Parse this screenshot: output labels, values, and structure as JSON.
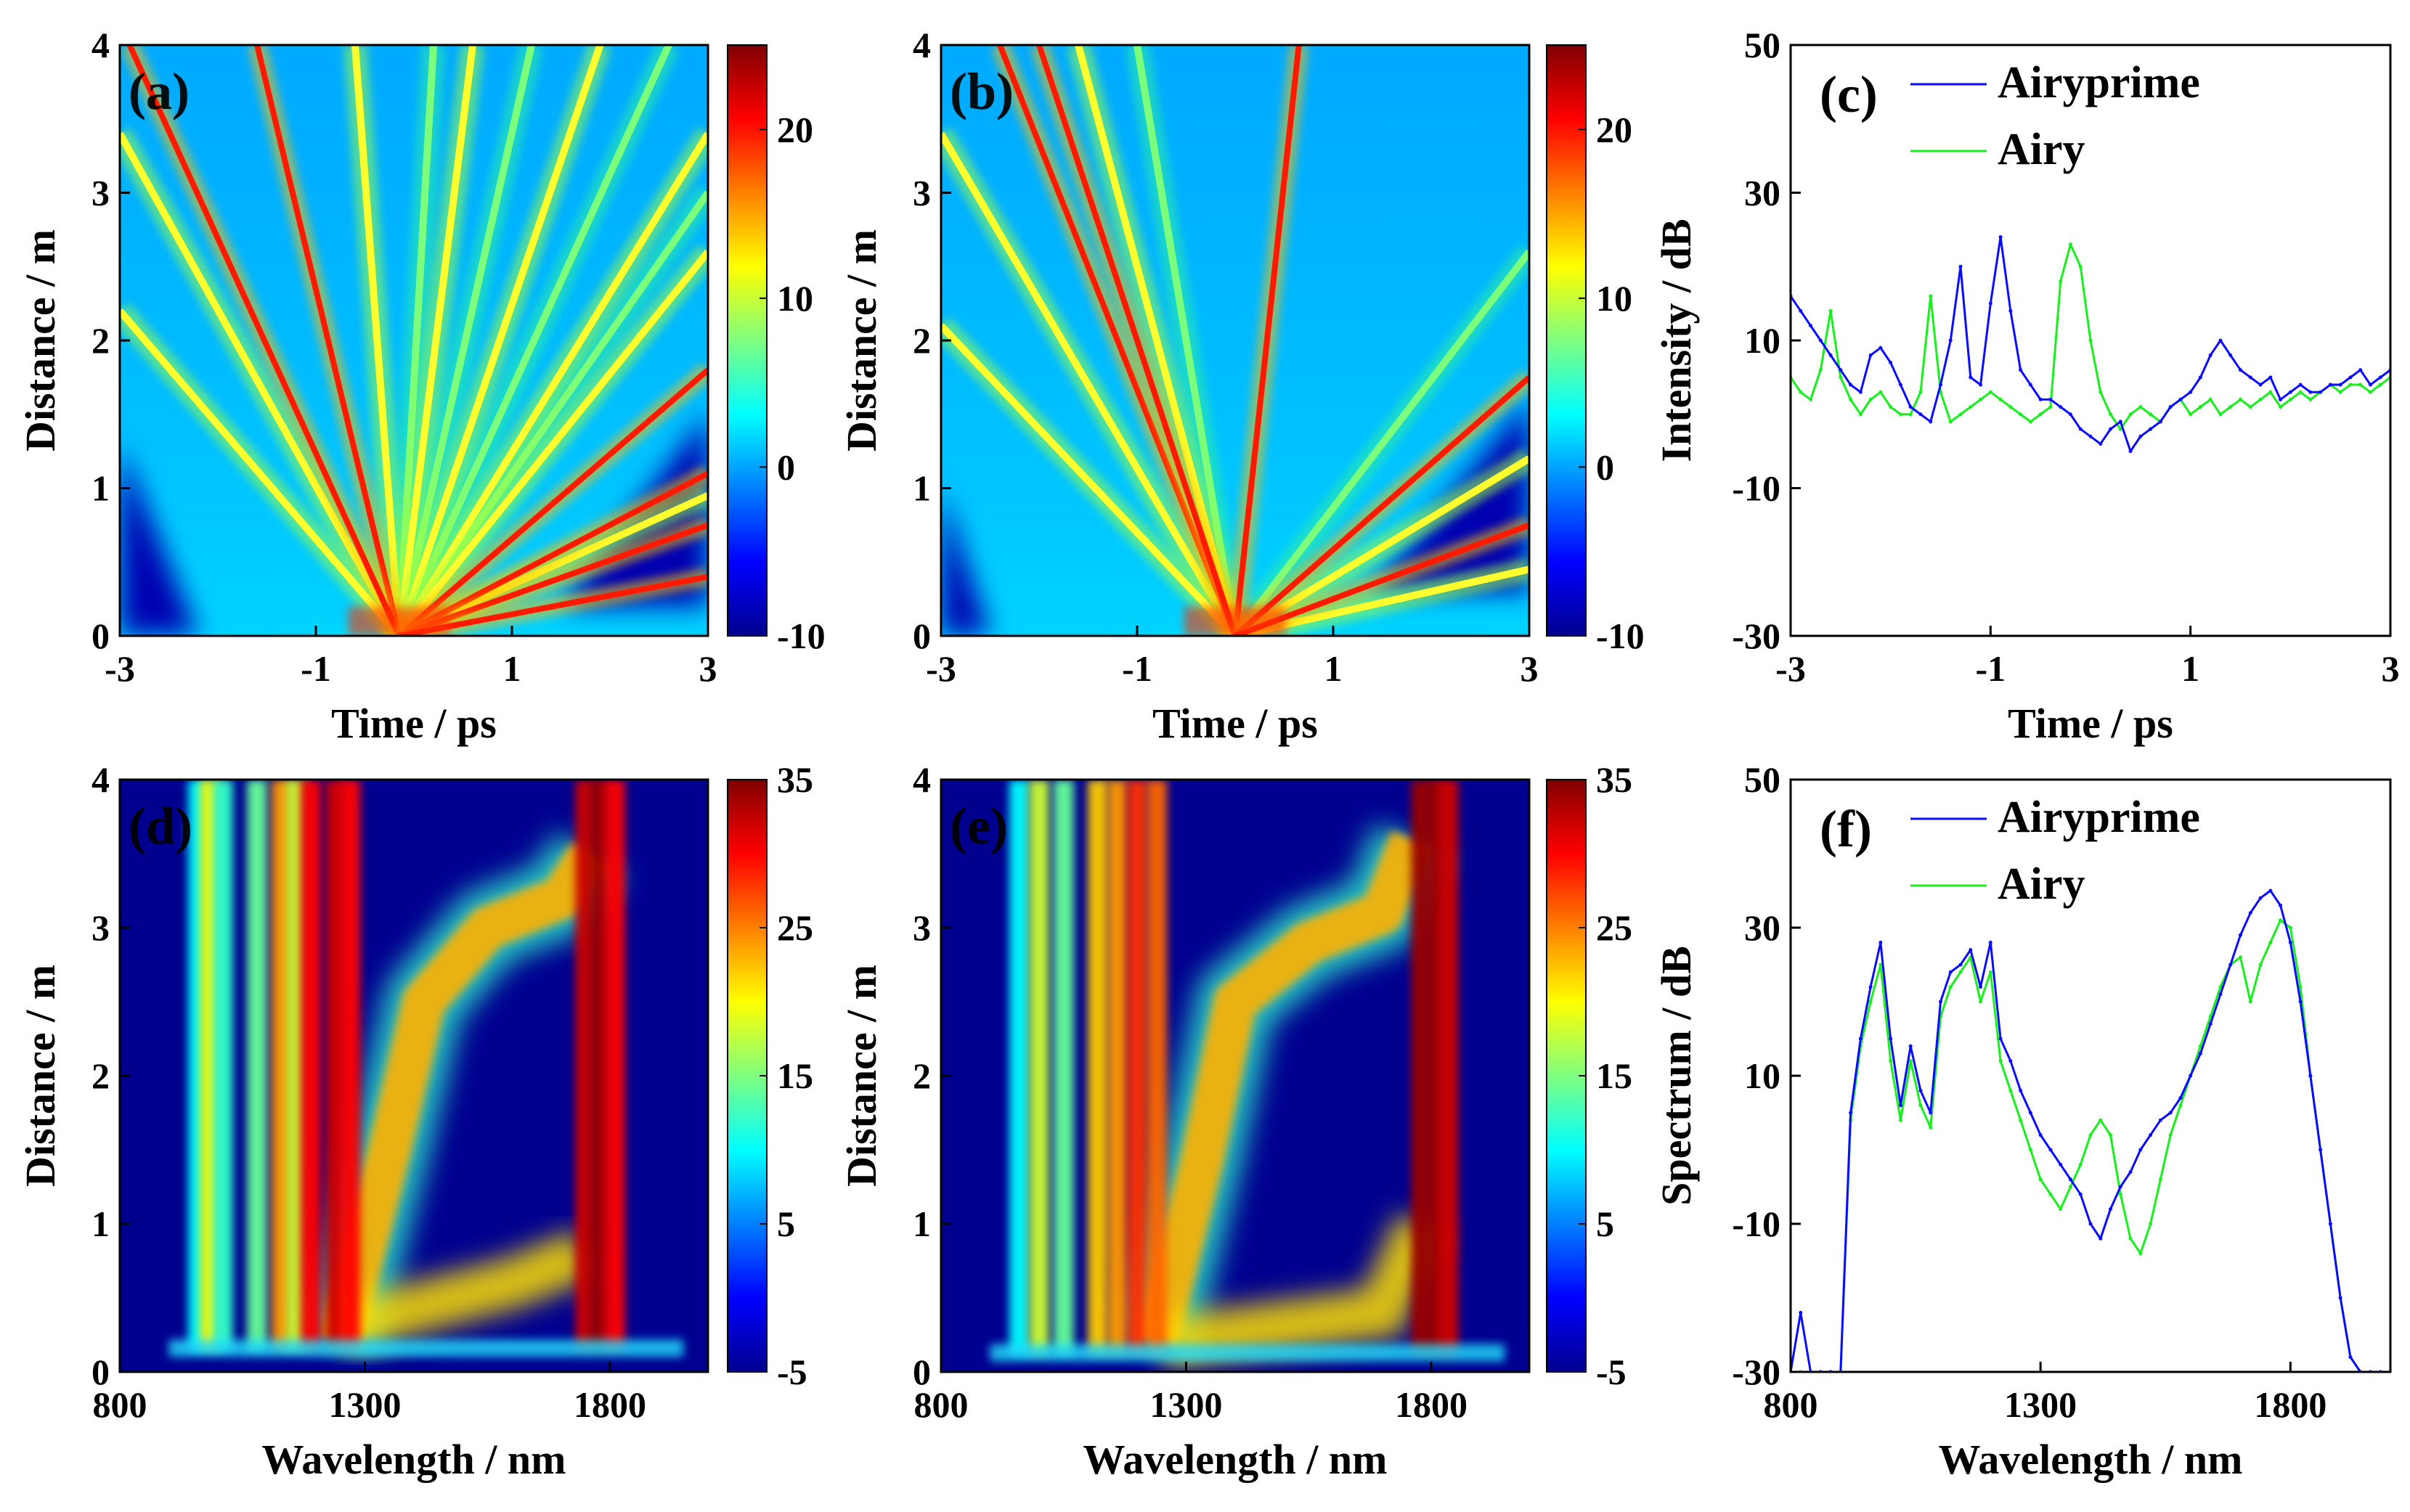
{
  "figure": {
    "panels": [
      "(a)",
      "(b)",
      "(c)",
      "(d)",
      "(e)",
      "(f)"
    ]
  },
  "colors": {
    "airyprime": "#0a0aff",
    "airy": "#17f01d",
    "map_low": "#00008f",
    "map_high": "#800000"
  },
  "chart_data": [
    {
      "id": "a",
      "type": "heatmap",
      "panel_label": "(a)",
      "xlabel": "Time / ps",
      "ylabel": "Distance / m",
      "xlim": [
        -3,
        3
      ],
      "ylim": [
        0,
        4
      ],
      "xticks": [
        -3,
        -1,
        1,
        3
      ],
      "xtick_labels": [
        "-3",
        "-1",
        "1",
        "3"
      ],
      "yticks": [
        0,
        1,
        2,
        3,
        4
      ],
      "ytick_labels": [
        "0",
        "1",
        "2",
        "3",
        "4"
      ],
      "clim": [
        -10,
        25
      ],
      "cticks": [
        -10,
        0,
        10,
        20
      ],
      "ctick_labels": [
        "-10",
        "0",
        "10",
        "20"
      ],
      "colormap": "jet",
      "features": {
        "fan_origin": [
          -0.15,
          0
        ],
        "strong_lines": [
          [
            -1.6,
            4
          ],
          [
            -2.9,
            4
          ],
          [
            3,
            1.8
          ],
          [
            3,
            1.1
          ],
          [
            3,
            0.75
          ],
          [
            3,
            0.4
          ]
        ],
        "medium_lines": [
          [
            -3,
            3.4
          ],
          [
            -3,
            2.2
          ],
          [
            -0.6,
            4
          ],
          [
            0.6,
            4
          ],
          [
            1.9,
            4
          ],
          [
            3,
            3.4
          ],
          [
            3,
            2.6
          ],
          [
            3,
            0.95
          ]
        ],
        "weak_lines": [
          [
            0.2,
            4
          ],
          [
            1.2,
            4
          ],
          [
            2.6,
            4
          ],
          [
            3,
            3.0
          ]
        ],
        "background_regions": [
          [
            -3,
            0,
            -2.2,
            1.3
          ],
          [
            1.5,
            0.2,
            3,
            1.5
          ]
        ]
      }
    },
    {
      "id": "b",
      "type": "heatmap",
      "panel_label": "(b)",
      "xlabel": "Time / ps",
      "ylabel": "Distance / m",
      "xlim": [
        -3,
        3
      ],
      "ylim": [
        0,
        4
      ],
      "xticks": [
        -3,
        -1,
        1,
        3
      ],
      "xtick_labels": [
        "-3",
        "-1",
        "1",
        "3"
      ],
      "yticks": [
        0,
        1,
        2,
        3,
        4
      ],
      "ytick_labels": [
        "0",
        "1",
        "2",
        "3",
        "4"
      ],
      "clim": [
        -10,
        25
      ],
      "cticks": [
        -10,
        0,
        10,
        20
      ],
      "ctick_labels": [
        "-10",
        "0",
        "10",
        "20"
      ],
      "colormap": "jet",
      "features": {
        "fan_origin": [
          0,
          0
        ],
        "strong_lines": [
          [
            0.65,
            4
          ],
          [
            -2.4,
            4
          ],
          [
            -2.0,
            4
          ],
          [
            3,
            1.75
          ],
          [
            3,
            0.75
          ]
        ],
        "medium_lines": [
          [
            -3,
            3.4
          ],
          [
            -3,
            2.1
          ],
          [
            -1.6,
            4
          ],
          [
            3,
            1.2
          ],
          [
            3,
            0.45
          ]
        ],
        "weak_lines": [
          [
            -1.0,
            4
          ],
          [
            3,
            2.6
          ]
        ],
        "background_regions": [
          [
            -3,
            0,
            -2.5,
            1.0
          ],
          [
            1.4,
            0.3,
            3,
            1.6
          ]
        ]
      }
    },
    {
      "id": "c",
      "type": "line",
      "panel_label": "(c)",
      "xlabel": "Time / ps",
      "ylabel": "Intensity / dB",
      "xlim": [
        -3,
        3
      ],
      "ylim": [
        -30,
        50
      ],
      "xticks": [
        -3,
        -1,
        1,
        3
      ],
      "xtick_labels": [
        "-3",
        "-1",
        "1",
        "3"
      ],
      "yticks": [
        -30,
        -10,
        10,
        30,
        50
      ],
      "ytick_labels": [
        "-30",
        "-10",
        "10",
        "30",
        "50"
      ],
      "legend": "top-left",
      "series": [
        {
          "name": "Airyprime",
          "color_key": "airyprime",
          "x": [
            -3,
            -2.9,
            -2.8,
            -2.7,
            -2.6,
            -2.5,
            -2.4,
            -2.3,
            -2.2,
            -2.1,
            -2.0,
            -1.9,
            -1.8,
            -1.7,
            -1.6,
            -1.5,
            -1.4,
            -1.3,
            -1.2,
            -1.1,
            -1.0,
            -0.9,
            -0.8,
            -0.7,
            -0.6,
            -0.5,
            -0.4,
            -0.3,
            -0.2,
            -0.1,
            0.0,
            0.1,
            0.2,
            0.3,
            0.4,
            0.5,
            0.6,
            0.7,
            0.8,
            0.9,
            1.0,
            1.1,
            1.2,
            1.3,
            1.4,
            1.5,
            1.6,
            1.7,
            1.8,
            1.9,
            2.0,
            2.1,
            2.2,
            2.3,
            2.4,
            2.5,
            2.6,
            2.7,
            2.8,
            2.9,
            3.0
          ],
          "y": [
            16,
            14,
            12,
            10,
            8,
            6,
            4,
            3,
            8,
            9,
            7,
            4,
            1,
            0,
            -1,
            4,
            10,
            20,
            5,
            4,
            15,
            24,
            14,
            6,
            4,
            2,
            2,
            1,
            0,
            -2,
            -3,
            -4,
            -2,
            -1,
            -5,
            -3,
            -2,
            -1,
            1,
            2,
            3,
            5,
            8,
            10,
            8,
            6,
            5,
            4,
            5,
            2,
            3,
            4,
            3,
            3,
            4,
            4,
            5,
            6,
            4,
            5,
            6
          ]
        },
        {
          "name": "Airy",
          "color_key": "airy",
          "x": [
            -3,
            -2.9,
            -2.8,
            -2.7,
            -2.6,
            -2.5,
            -2.4,
            -2.3,
            -2.2,
            -2.1,
            -2.0,
            -1.9,
            -1.8,
            -1.7,
            -1.6,
            -1.5,
            -1.4,
            -1.3,
            -1.2,
            -1.1,
            -1.0,
            -0.9,
            -0.8,
            -0.7,
            -0.6,
            -0.5,
            -0.4,
            -0.3,
            -0.2,
            -0.1,
            0.0,
            0.1,
            0.2,
            0.3,
            0.4,
            0.5,
            0.6,
            0.7,
            0.8,
            0.9,
            1.0,
            1.1,
            1.2,
            1.3,
            1.4,
            1.5,
            1.6,
            1.7,
            1.8,
            1.9,
            2.0,
            2.1,
            2.2,
            2.3,
            2.4,
            2.5,
            2.6,
            2.7,
            2.8,
            2.9,
            3.0
          ],
          "y": [
            5,
            3,
            2,
            6,
            14,
            5,
            2,
            0,
            2,
            3,
            1,
            0,
            0,
            3,
            16,
            3,
            -1,
            0,
            1,
            2,
            3,
            2,
            1,
            0,
            -1,
            0,
            1,
            18,
            23,
            20,
            10,
            3,
            0,
            -2,
            0,
            1,
            0,
            -1,
            1,
            2,
            0,
            1,
            2,
            0,
            1,
            2,
            1,
            2,
            3,
            1,
            2,
            3,
            2,
            3,
            4,
            3,
            4,
            4,
            3,
            4,
            5
          ]
        }
      ]
    },
    {
      "id": "d",
      "type": "heatmap",
      "panel_label": "(d)",
      "xlabel": "Wavelength / nm",
      "ylabel": "Distance / m",
      "xlim": [
        800,
        2000
      ],
      "ylim": [
        0,
        4
      ],
      "xticks": [
        800,
        1300,
        1800
      ],
      "xtick_labels": [
        "800",
        "1300",
        "1800"
      ],
      "yticks": [
        0,
        1,
        2,
        3,
        4
      ],
      "ytick_labels": [
        "0",
        "1",
        "2",
        "3",
        "4"
      ],
      "clim": [
        -5,
        35
      ],
      "cticks": [
        -5,
        5,
        15,
        25,
        35
      ],
      "ctick_labels": [
        "-5",
        "5",
        "15",
        "25",
        "35"
      ],
      "colormap": "jet",
      "features": {
        "vertical_bands": [
          [
            960,
            10
          ],
          [
            985,
            20
          ],
          [
            1010,
            12
          ],
          [
            1080,
            14
          ],
          [
            1130,
            24
          ],
          [
            1160,
            18
          ],
          [
            1190,
            30
          ],
          [
            1240,
            32
          ],
          [
            1270,
            30
          ],
          [
            1750,
            32
          ],
          [
            1780,
            34
          ],
          [
            1810,
            30
          ]
        ],
        "redshift_branch": [
          [
            1250,
            0.2
          ],
          [
            1350,
            1.5
          ],
          [
            1420,
            2.5
          ],
          [
            1550,
            3.0
          ],
          [
            1700,
            3.2
          ],
          [
            1760,
            3.5
          ]
        ],
        "lower_ridges": [
          [
            1250,
            0.3
          ],
          [
            1600,
            0.6
          ],
          [
            1750,
            0.8
          ]
        ],
        "baseline_distance": 0.15
      }
    },
    {
      "id": "e",
      "type": "heatmap",
      "panel_label": "(e)",
      "xlabel": "Wavelength / nm",
      "ylabel": "Distance / m",
      "xlim": [
        800,
        2000
      ],
      "ylim": [
        0,
        4
      ],
      "xticks": [
        800,
        1300,
        1800
      ],
      "xtick_labels": [
        "800",
        "1300",
        "1800"
      ],
      "yticks": [
        0,
        1,
        2,
        3,
        4
      ],
      "ytick_labels": [
        "0",
        "1",
        "2",
        "3",
        "4"
      ],
      "clim": [
        -5,
        35
      ],
      "cticks": [
        -5,
        5,
        15,
        25,
        35
      ],
      "ctick_labels": [
        "-5",
        "5",
        "15",
        "25",
        "35"
      ],
      "colormap": "jet",
      "features": {
        "vertical_bands": [
          [
            960,
            10
          ],
          [
            1000,
            18
          ],
          [
            1050,
            14
          ],
          [
            1120,
            22
          ],
          [
            1160,
            24
          ],
          [
            1200,
            28
          ],
          [
            1240,
            26
          ],
          [
            1780,
            34
          ],
          [
            1810,
            34
          ],
          [
            1835,
            32
          ]
        ],
        "redshift_branch": [
          [
            1240,
            0.2
          ],
          [
            1330,
            1.4
          ],
          [
            1400,
            2.5
          ],
          [
            1550,
            2.9
          ],
          [
            1700,
            3.1
          ],
          [
            1760,
            3.6
          ]
        ],
        "lower_ridges": [
          [
            1250,
            0.2
          ],
          [
            1700,
            0.4
          ],
          [
            1780,
            1.0
          ]
        ],
        "baseline_distance": 0.12
      }
    },
    {
      "id": "f",
      "type": "line",
      "panel_label": "(f)",
      "xlabel": "Wavelength / nm",
      "ylabel": "Spectrum / dB",
      "xlim": [
        800,
        2000
      ],
      "ylim": [
        -30,
        50
      ],
      "xticks": [
        800,
        1300,
        1800
      ],
      "xtick_labels": [
        "800",
        "1300",
        "1800"
      ],
      "yticks": [
        -30,
        -10,
        10,
        30,
        50
      ],
      "ytick_labels": [
        "-30",
        "-10",
        "10",
        "30",
        "50"
      ],
      "legend": "top-left",
      "series": [
        {
          "name": "Airyprime",
          "color_key": "airyprime",
          "x": [
            800,
            820,
            840,
            860,
            880,
            900,
            920,
            940,
            960,
            980,
            1000,
            1020,
            1040,
            1060,
            1080,
            1100,
            1120,
            1140,
            1160,
            1180,
            1200,
            1220,
            1240,
            1260,
            1280,
            1300,
            1320,
            1340,
            1360,
            1380,
            1400,
            1420,
            1440,
            1460,
            1480,
            1500,
            1520,
            1540,
            1560,
            1580,
            1600,
            1620,
            1640,
            1660,
            1680,
            1700,
            1720,
            1740,
            1760,
            1780,
            1800,
            1820,
            1840,
            1860,
            1880,
            1900,
            1920,
            1940,
            1960,
            1980,
            2000
          ],
          "y": [
            -30,
            -22,
            -30,
            -30,
            -30,
            -30,
            5,
            15,
            22,
            28,
            15,
            6,
            14,
            8,
            5,
            20,
            24,
            25,
            27,
            22,
            28,
            15,
            12,
            8,
            5,
            2,
            0,
            -2,
            -4,
            -6,
            -10,
            -12,
            -8,
            -5,
            -3,
            0,
            2,
            4,
            5,
            7,
            10,
            13,
            17,
            21,
            25,
            29,
            32,
            34,
            35,
            33,
            28,
            20,
            10,
            0,
            -10,
            -20,
            -28,
            -30,
            -30,
            -30,
            -30
          ]
        },
        {
          "name": "Airy",
          "color_key": "airy",
          "x": [
            800,
            820,
            840,
            860,
            880,
            900,
            920,
            940,
            960,
            980,
            1000,
            1020,
            1040,
            1060,
            1080,
            1100,
            1120,
            1140,
            1160,
            1180,
            1200,
            1220,
            1240,
            1260,
            1280,
            1300,
            1320,
            1340,
            1360,
            1380,
            1400,
            1420,
            1440,
            1460,
            1480,
            1500,
            1520,
            1540,
            1560,
            1580,
            1600,
            1620,
            1640,
            1660,
            1680,
            1700,
            1720,
            1740,
            1760,
            1780,
            1800,
            1820,
            1840,
            1860,
            1880,
            1900,
            1920,
            1940,
            1960,
            1980,
            2000
          ],
          "y": [
            -30,
            -30,
            -30,
            -30,
            -30,
            -30,
            4,
            14,
            20,
            25,
            12,
            4,
            12,
            6,
            3,
            18,
            22,
            24,
            26,
            20,
            24,
            12,
            8,
            4,
            0,
            -4,
            -6,
            -8,
            -5,
            -2,
            2,
            4,
            2,
            -6,
            -12,
            -14,
            -10,
            -4,
            2,
            6,
            10,
            14,
            18,
            22,
            25,
            26,
            20,
            25,
            28,
            31,
            30,
            22,
            10,
            0,
            -10,
            -20,
            -28,
            -30,
            -30,
            -30,
            -30
          ]
        }
      ]
    }
  ]
}
